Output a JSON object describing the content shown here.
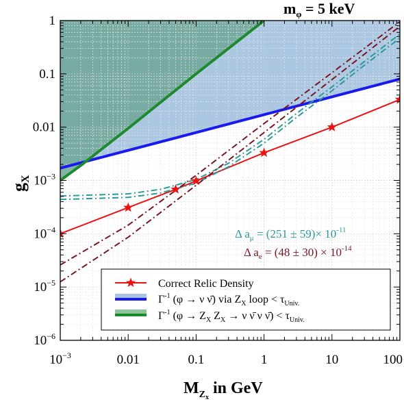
{
  "chart_data": {
    "type": "line",
    "title": "m_φ = 5 keV",
    "title_parts": {
      "main": "m",
      "sub": "φ",
      "rest": " = 5 keV"
    },
    "xlabel": "M_Z_x in GeV",
    "xlabel_parts": {
      "main": "M",
      "sub": "Z",
      "subsub": "x",
      "rest": " in GeV"
    },
    "ylabel": "g_X",
    "ylabel_parts": {
      "main": "g",
      "sub": "X"
    },
    "x_scale": "log",
    "y_scale": "log",
    "xlim": [
      0.001,
      100
    ],
    "ylim": [
      1e-06,
      1
    ],
    "grid": true,
    "x_ticks": [
      {
        "value": 0.001,
        "label": "10",
        "exp": "−3"
      },
      {
        "value": 0.01,
        "label": "0.01",
        "exp": ""
      },
      {
        "value": 0.1,
        "label": "0.1",
        "exp": ""
      },
      {
        "value": 1,
        "label": "1",
        "exp": ""
      },
      {
        "value": 10,
        "label": "10",
        "exp": ""
      },
      {
        "value": 100,
        "label": "100",
        "exp": ""
      }
    ],
    "y_ticks": [
      {
        "value": 1e-06,
        "label": "10",
        "exp": "−6"
      },
      {
        "value": 1e-05,
        "label": "10",
        "exp": "−5"
      },
      {
        "value": 0.0001,
        "label": "10",
        "exp": "−4"
      },
      {
        "value": 0.001,
        "label": "10",
        "exp": "−3"
      },
      {
        "value": 0.01,
        "label": "0.01",
        "exp": ""
      },
      {
        "value": 0.1,
        "label": "0.1",
        "exp": ""
      },
      {
        "value": 1,
        "label": "1",
        "exp": ""
      }
    ],
    "series": [
      {
        "name": "Correct Relic Density",
        "style": "solid-star",
        "color": "#ee1111",
        "x": [
          0.001,
          0.01,
          0.05,
          0.1,
          1,
          10,
          100
        ],
        "y": [
          0.0001,
          0.00031,
          0.00068,
          0.00098,
          0.0033,
          0.01,
          0.033
        ]
      },
      {
        "name": "Γ⁻¹ (φ → ν ν̄) via Z_X loop < τ_Univ.",
        "style": "boundary-fill-above",
        "color": "#1a1aee",
        "fill": "#a8c4e0",
        "x": [
          0.001,
          100
        ],
        "y": [
          0.0017,
          0.08
        ]
      },
      {
        "name": "Γ⁻¹ (φ → Z_X Z_X → ν ν̄ ν ν̄) < τ_Univ.",
        "style": "boundary-fill-above",
        "color": "#1e8a2e",
        "fill": "#6fa797",
        "x": [
          0.001,
          0.0021,
          0.01,
          0.1,
          1.0
        ],
        "y": [
          0.001,
          0.002,
          0.0095,
          0.1,
          1.0
        ]
      },
      {
        "style": "dashdot",
        "color": "#2a9a9a",
        "group": "amu",
        "x": [
          0.001,
          0.01,
          0.03,
          0.1,
          0.3,
          1,
          3,
          10,
          30,
          100
        ],
        "y": [
          0.00051,
          0.00056,
          0.00068,
          0.00104,
          0.0021,
          0.0059,
          0.018,
          0.057,
          0.17,
          0.56
        ]
      },
      {
        "style": "dashdot",
        "color": "#2a9a9a",
        "group": "amu",
        "x": [
          0.001,
          0.01,
          0.03,
          0.1,
          0.3,
          1,
          3,
          10,
          30,
          100
        ],
        "y": [
          0.00044,
          0.00048,
          0.00058,
          0.00089,
          0.0018,
          0.005,
          0.0152,
          0.048,
          0.145,
          0.47
        ]
      },
      {
        "style": "dashdot",
        "color": "#7a1420",
        "group": "ae",
        "x": [
          0.001,
          0.01,
          0.1,
          1,
          10,
          100
        ],
        "y": [
          2.6e-05,
          0.000145,
          0.00125,
          0.0117,
          0.105,
          0.95
        ]
      },
      {
        "style": "dashdot",
        "color": "#7a1420",
        "group": "ae",
        "x": [
          0.001,
          0.01,
          0.1,
          1,
          10,
          100
        ],
        "y": [
          1.25e-05,
          8.6e-05,
          0.00081,
          0.0079,
          0.078,
          0.78
        ]
      }
    ],
    "annotations": [
      {
        "text": "Δ a",
        "sub": "μ",
        "rest": " = (251 ± 59)× 10",
        "exp": "-11",
        "color": "#2a9a9a"
      },
      {
        "text": "Δ a",
        "sub": "e",
        "rest": " = (48 ± 30) × 10",
        "exp": "-14",
        "color": "#7a1420"
      }
    ],
    "legend": {
      "placement": "bottom-right",
      "entries": [
        {
          "label": "Correct Relic Density",
          "symbol": "star-line",
          "color": "#ee1111"
        },
        {
          "label_parts": [
            "Γ",
            "-1",
            " (φ → ν ν̄) via Z",
            "X",
            " loop < τ",
            "Univ."
          ],
          "symbol": "band",
          "color": "#1a1aee",
          "fill": "#a8c4e0"
        },
        {
          "label_parts": [
            "Γ",
            "-1",
            " (φ → Z",
            "X",
            " Z",
            "X",
            " → ν ν̄ ν ν̄)  < τ",
            "Univ."
          ],
          "symbol": "band",
          "color": "#1e8a2e",
          "fill": "#8ec49a"
        }
      ]
    }
  }
}
